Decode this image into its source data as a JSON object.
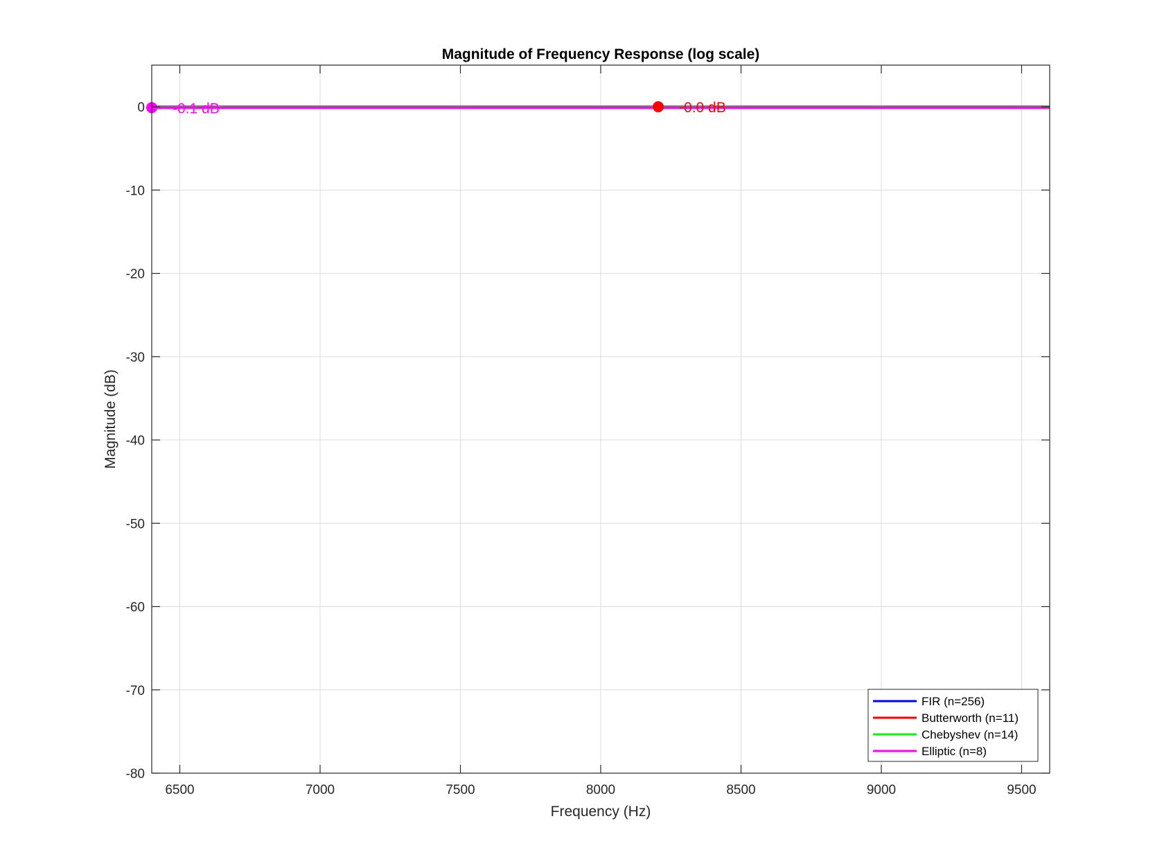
{
  "chart_data": {
    "type": "line",
    "title": "Magnitude of Frequency Response (log scale)",
    "xlabel": "Frequency (Hz)",
    "ylabel": "Magnitude (dB)",
    "xlim": [
      6400,
      9600
    ],
    "ylim": [
      -80,
      5
    ],
    "xticks": [
      6500,
      7000,
      7500,
      8000,
      8500,
      9000,
      9500
    ],
    "yticks": [
      0,
      -10,
      -20,
      -30,
      -40,
      -50,
      -60,
      -70,
      -80
    ],
    "grid": true,
    "legend_position": "bottom-right",
    "series": [
      {
        "name": "FIR (n=256)",
        "color": "#0000ff",
        "x": [
          6400,
          9600
        ],
        "y": [
          0,
          0
        ]
      },
      {
        "name": "Butterworth (n=11)",
        "color": "#ff0000",
        "x": [
          6400,
          9600
        ],
        "y": [
          0,
          0
        ]
      },
      {
        "name": "Chebyshev (n=14)",
        "color": "#00ff00",
        "x": [
          6400,
          9600
        ],
        "y": [
          0,
          0
        ]
      },
      {
        "name": "Elliptic (n=8)",
        "color": "#ff00ff",
        "x": [
          6400,
          9600
        ],
        "y": [
          -0.1,
          -0.1
        ]
      }
    ],
    "markers": [
      {
        "series": "Butterworth (n=11)",
        "color": "#ff0000",
        "x": 8205,
        "y": 0.0,
        "label": "-0.0 dB"
      },
      {
        "series": "Elliptic (n=8)",
        "color": "#ff00ff",
        "x": 6400,
        "y": -0.1,
        "label": "-0.1 dB"
      }
    ]
  }
}
